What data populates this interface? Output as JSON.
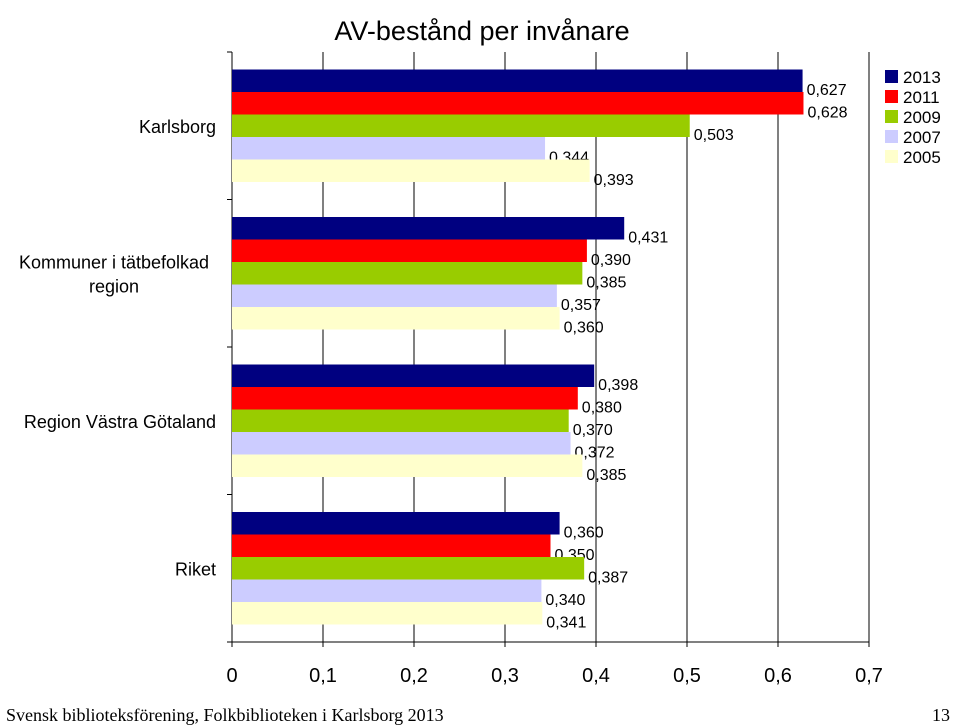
{
  "chart_data": {
    "type": "bar",
    "orientation": "horizontal",
    "title": "AV-bestånd per invånare",
    "categories": [
      "Karlsborg",
      "Kommuner i tätbefolkad region",
      "Region Västra Götaland",
      "Riket"
    ],
    "series": [
      {
        "name": "2013",
        "color": "#000080",
        "values": [
          0.627,
          0.431,
          0.398,
          0.36
        ],
        "labels": [
          "0,627",
          "0,431",
          "0,398",
          "0,360"
        ]
      },
      {
        "name": "2011",
        "color": "#ff0000",
        "values": [
          0.628,
          0.39,
          0.38,
          0.35
        ],
        "labels": [
          "0,628",
          "0,390",
          "0,380",
          "0,350"
        ]
      },
      {
        "name": "2009",
        "color": "#99cc00",
        "values": [
          0.503,
          0.385,
          0.37,
          0.387
        ],
        "labels": [
          "0,503",
          "0,385",
          "0,370",
          "0,387"
        ]
      },
      {
        "name": "2007",
        "color": "#ccccff",
        "values": [
          0.344,
          0.357,
          0.372,
          0.34
        ],
        "labels": [
          "0,344",
          "0,357",
          "0,372",
          "0,340"
        ]
      },
      {
        "name": "2005",
        "color": "#ffffcc",
        "values": [
          0.393,
          0.36,
          0.385,
          0.341
        ],
        "labels": [
          "0,393",
          "0,360",
          "0,385",
          "0,341"
        ]
      }
    ],
    "xlim": [
      0,
      0.7
    ],
    "xticks": [
      0,
      0.1,
      0.2,
      0.3,
      0.4,
      0.5,
      0.6,
      0.7
    ],
    "xtick_labels": [
      "0",
      "0,1",
      "0,2",
      "0,3",
      "0,4",
      "0,5",
      "0,6",
      "0,7"
    ],
    "grid": true,
    "legend_position": "top-right"
  },
  "footer": {
    "left": "Svensk biblioteksförening, Folkbiblioteken i Karlsborg 2013",
    "right": "13"
  }
}
